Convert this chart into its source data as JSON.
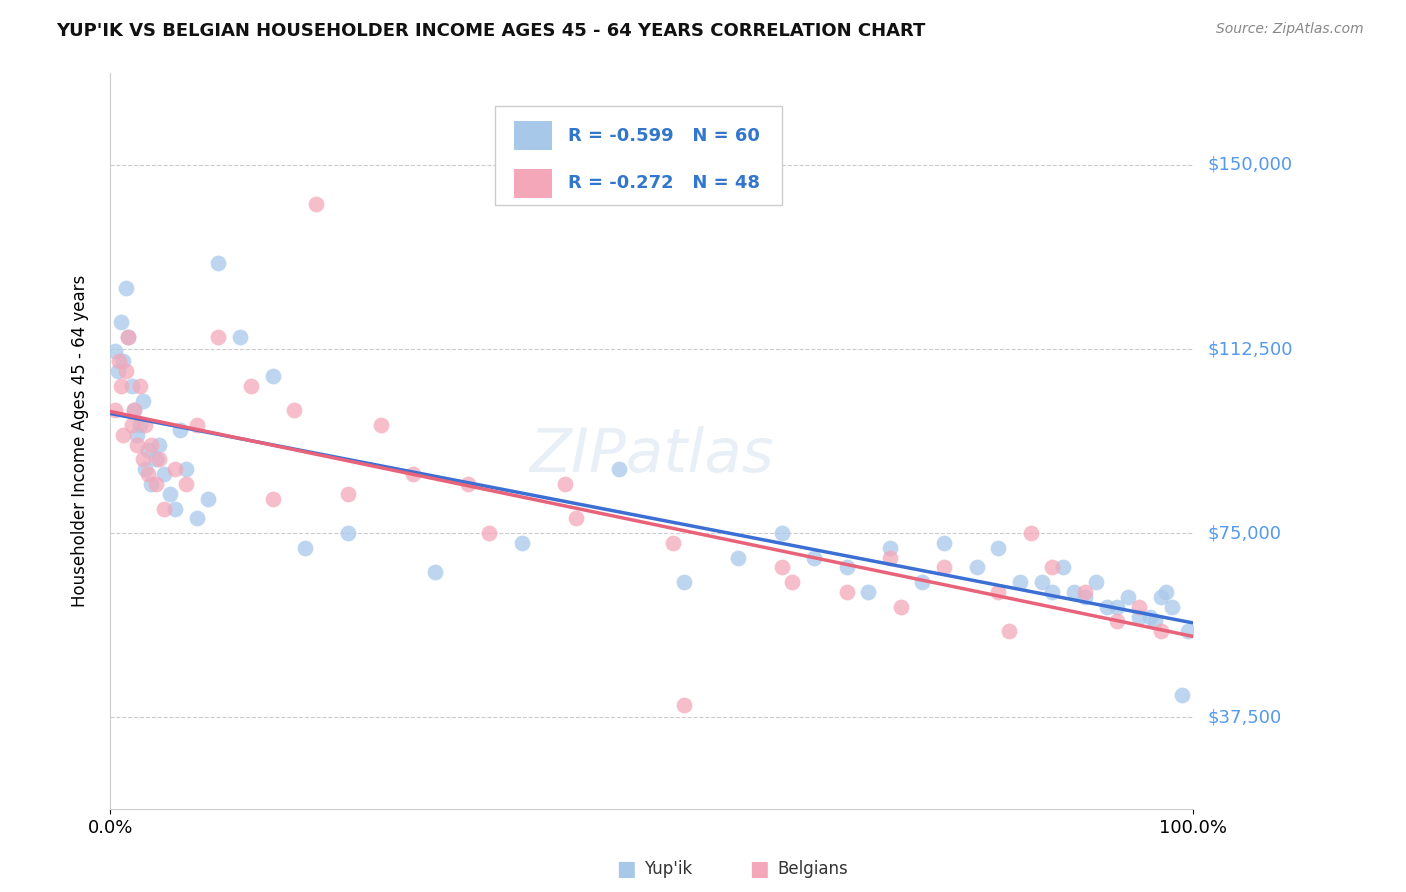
{
  "title": "YUP'IK VS BELGIAN HOUSEHOLDER INCOME AGES 45 - 64 YEARS CORRELATION CHART",
  "source": "Source: ZipAtlas.com",
  "ylabel": "Householder Income Ages 45 - 64 years",
  "xlim": [
    0.0,
    1.0
  ],
  "ylim": [
    18750,
    168750
  ],
  "yticks": [
    37500,
    75000,
    112500,
    150000
  ],
  "ytick_labels": [
    "$37,500",
    "$75,000",
    "$112,500",
    "$150,000"
  ],
  "xtick_labels": [
    "0.0%",
    "100.0%"
  ],
  "yupik_color": "#a8c8ea",
  "belgian_color": "#f4a7b9",
  "trend_yupik_color": "#3b6fd4",
  "trend_belgian_color": "#e8637a",
  "watermark": "ZIPatlas",
  "yupik_x": [
    0.005,
    0.007,
    0.01,
    0.012,
    0.015,
    0.017,
    0.02,
    0.022,
    0.025,
    0.028,
    0.03,
    0.032,
    0.035,
    0.038,
    0.042,
    0.045,
    0.05,
    0.055,
    0.06,
    0.065,
    0.07,
    0.08,
    0.09,
    0.1,
    0.12,
    0.15,
    0.18,
    0.22,
    0.3,
    0.38,
    0.47,
    0.53,
    0.58,
    0.62,
    0.65,
    0.68,
    0.7,
    0.72,
    0.75,
    0.77,
    0.8,
    0.82,
    0.84,
    0.86,
    0.87,
    0.88,
    0.89,
    0.9,
    0.91,
    0.92,
    0.93,
    0.94,
    0.95,
    0.96,
    0.965,
    0.97,
    0.975,
    0.98,
    0.99,
    0.995
  ],
  "yupik_y": [
    112000,
    108000,
    118000,
    110000,
    125000,
    115000,
    105000,
    100000,
    95000,
    97000,
    102000,
    88000,
    92000,
    85000,
    90000,
    93000,
    87000,
    83000,
    80000,
    96000,
    88000,
    78000,
    82000,
    130000,
    115000,
    107000,
    72000,
    75000,
    67000,
    73000,
    88000,
    65000,
    70000,
    75000,
    70000,
    68000,
    63000,
    72000,
    65000,
    73000,
    68000,
    72000,
    65000,
    65000,
    63000,
    68000,
    63000,
    62000,
    65000,
    60000,
    60000,
    62000,
    58000,
    58000,
    57000,
    62000,
    63000,
    60000,
    42000,
    55000
  ],
  "belgian_x": [
    0.005,
    0.008,
    0.01,
    0.012,
    0.015,
    0.017,
    0.02,
    0.022,
    0.025,
    0.028,
    0.03,
    0.032,
    0.035,
    0.038,
    0.042,
    0.045,
    0.05,
    0.06,
    0.07,
    0.08,
    0.1,
    0.13,
    0.17,
    0.22,
    0.28,
    0.35,
    0.43,
    0.52,
    0.62,
    0.68,
    0.72,
    0.77,
    0.82,
    0.85,
    0.87,
    0.9,
    0.93,
    0.95,
    0.97,
    0.15,
    0.25,
    0.33,
    0.19,
    0.42,
    0.53,
    0.63,
    0.73,
    0.83
  ],
  "belgian_y": [
    100000,
    110000,
    105000,
    95000,
    108000,
    115000,
    97000,
    100000,
    93000,
    105000,
    90000,
    97000,
    87000,
    93000,
    85000,
    90000,
    80000,
    88000,
    85000,
    97000,
    115000,
    105000,
    100000,
    83000,
    87000,
    75000,
    78000,
    73000,
    68000,
    63000,
    70000,
    68000,
    63000,
    75000,
    68000,
    63000,
    57000,
    60000,
    55000,
    82000,
    97000,
    85000,
    142000,
    85000,
    40000,
    65000,
    60000,
    55000
  ]
}
